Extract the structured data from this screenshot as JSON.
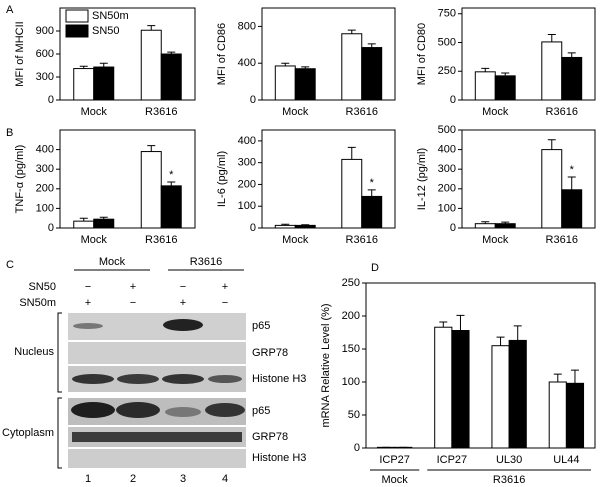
{
  "panel_labels": [
    "A",
    "B",
    "C",
    "D"
  ],
  "chart_data": [
    {
      "type": "bar",
      "ylabel": "MFI of MHCII",
      "categories": [
        "Mock",
        "R3616"
      ],
      "series": [
        {
          "name": "SN50m",
          "color": "#ffffff",
          "values": [
            410,
            910
          ],
          "errors": [
            30,
            60
          ]
        },
        {
          "name": "SN50",
          "color": "#000000",
          "values": [
            430,
            600
          ],
          "errors": [
            50,
            25
          ]
        }
      ],
      "ylim": [
        0,
        1200
      ],
      "yticks": [
        0,
        300,
        600,
        900
      ],
      "legend": "upper left"
    },
    {
      "type": "bar",
      "ylabel": "MFI of CD86",
      "categories": [
        "Mock",
        "R3616"
      ],
      "series": [
        {
          "color": "#ffffff",
          "values": [
            370,
            720
          ],
          "errors": [
            30,
            40
          ]
        },
        {
          "color": "#000000",
          "values": [
            340,
            570
          ],
          "errors": [
            20,
            40
          ]
        }
      ],
      "ylim": [
        0,
        1000
      ],
      "yticks": [
        0,
        400,
        800
      ]
    },
    {
      "type": "bar",
      "ylabel": "MFI of CD80",
      "categories": [
        "Mock",
        "R3616"
      ],
      "series": [
        {
          "color": "#ffffff",
          "values": [
            245,
            505
          ],
          "errors": [
            30,
            65
          ]
        },
        {
          "color": "#000000",
          "values": [
            210,
            370
          ],
          "errors": [
            25,
            40
          ]
        }
      ],
      "ylim": [
        0,
        800
      ],
      "yticks": [
        0,
        250,
        500,
        750
      ]
    },
    {
      "type": "bar",
      "ylabel": "TNF-α (pg/ml)",
      "categories": [
        "Mock",
        "R3616"
      ],
      "series": [
        {
          "color": "#ffffff",
          "values": [
            35,
            390
          ],
          "errors": [
            15,
            30
          ]
        },
        {
          "color": "#000000",
          "values": [
            45,
            215
          ],
          "errors": [
            10,
            20
          ],
          "annotations": [
            null,
            "*"
          ]
        }
      ],
      "ylim": [
        0,
        500
      ],
      "yticks": [
        0,
        100,
        200,
        300,
        400
      ]
    },
    {
      "type": "bar",
      "ylabel": "IL-6 (pg/ml)",
      "categories": [
        "Mock",
        "R3616"
      ],
      "series": [
        {
          "color": "#ffffff",
          "values": [
            12,
            315
          ],
          "errors": [
            5,
            55
          ]
        },
        {
          "color": "#000000",
          "values": [
            12,
            145
          ],
          "errors": [
            3,
            30
          ],
          "annotations": [
            null,
            "*"
          ]
        }
      ],
      "ylim": [
        0,
        450
      ],
      "yticks": [
        0,
        100,
        200,
        300,
        400
      ]
    },
    {
      "type": "bar",
      "ylabel": "IL-12 (pg/ml)",
      "categories": [
        "Mock",
        "R3616"
      ],
      "series": [
        {
          "color": "#ffffff",
          "values": [
            22,
            400
          ],
          "errors": [
            10,
            50
          ]
        },
        {
          "color": "#000000",
          "values": [
            22,
            195
          ],
          "errors": [
            8,
            65
          ],
          "annotations": [
            null,
            "*"
          ]
        }
      ],
      "ylim": [
        0,
        500
      ],
      "yticks": [
        0,
        100,
        200,
        300,
        400,
        500
      ]
    },
    {
      "type": "bar",
      "ylabel": "mRNA Relative Level (%)",
      "groups": [
        {
          "name": "Mock",
          "categories": [
            "ICP27"
          ]
        },
        {
          "name": "R3616",
          "categories": [
            "ICP27",
            "UL30",
            "UL44"
          ]
        }
      ],
      "series": [
        {
          "color": "#ffffff",
          "values": [
            1,
            183,
            155,
            100
          ],
          "errors": [
            0,
            8,
            13,
            12
          ]
        },
        {
          "color": "#000000",
          "values": [
            1,
            178,
            163,
            98
          ],
          "errors": [
            0,
            23,
            22,
            20
          ]
        }
      ],
      "ylim": [
        0,
        250
      ],
      "yticks": [
        0,
        50,
        100,
        150,
        200,
        250
      ]
    }
  ],
  "blot": {
    "groups": [
      "Mock",
      "R3616"
    ],
    "treatments": [
      {
        "name": "SN50",
        "signs": [
          "−",
          "+",
          "−",
          "+"
        ]
      },
      {
        "name": "SN50m",
        "signs": [
          "+",
          "−",
          "+",
          "−"
        ]
      }
    ],
    "fractions": [
      {
        "name": "Nucleus",
        "rows": [
          "p65",
          "GRP78",
          "Histone H3"
        ]
      },
      {
        "name": "Cytoplasm",
        "rows": [
          "p65",
          "GRP78",
          "Histone H3"
        ]
      }
    ],
    "lanes": [
      "1",
      "2",
      "3",
      "4"
    ]
  }
}
